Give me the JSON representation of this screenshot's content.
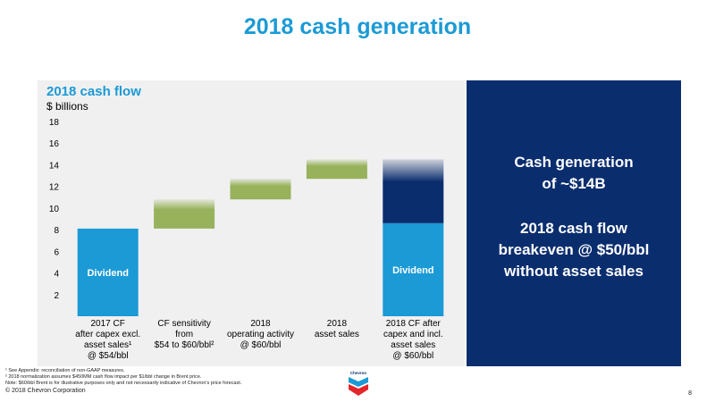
{
  "title": "2018 cash generation",
  "chart": {
    "title": "2018 cash flow",
    "unit": "$ billions"
  },
  "callouts": {
    "first": [
      "Cash generation",
      "of ~$14B"
    ],
    "second": [
      "2018 cash flow",
      "breakeven @ $50/bbl",
      "without asset sales"
    ]
  },
  "footnotes": [
    "¹ See Appendix: reconciliation of non-GAAP measures.",
    "² 2018 normalization assumes $450MM cash flow impact per $1/bbl change in Brent price.",
    "Note: $60/bbl Brent is for illustrative purposes only and not necessarily indicative of Chevron's price forecast."
  ],
  "copyright": "© 2018 Chevron Corporation",
  "page_number": "8",
  "logo_text": "Chevron",
  "chart_data": {
    "type": "bar",
    "subtype": "waterfall",
    "title": "2018 cash flow",
    "ylabel": "$ billions",
    "ylim": [
      0,
      18
    ],
    "yticks": [
      2,
      4,
      6,
      8,
      10,
      12,
      14,
      16,
      18
    ],
    "categories": [
      [
        "2017 CF",
        "after capex excl.",
        "asset sales¹",
        "@ $54/bbl"
      ],
      [
        "CF sensitivity",
        "from",
        "$54 to $60/bbl²"
      ],
      [
        "2018",
        "operating activity",
        "@ $60/bbl"
      ],
      [
        "2018",
        "asset sales"
      ],
      [
        "2018 CF after",
        "capex and incl.",
        "asset sales",
        "@ $60/bbl"
      ]
    ],
    "bars": [
      {
        "segments": [
          {
            "from": 0,
            "to": 8.1,
            "color": "#1b9ad6",
            "label": "Dividend"
          }
        ]
      },
      {
        "segments": [
          {
            "from": 8.1,
            "to": 10.8,
            "color": "#97b25b",
            "fade": true
          }
        ]
      },
      {
        "segments": [
          {
            "from": 10.8,
            "to": 12.7,
            "color": "#97b25b",
            "fade": true
          }
        ]
      },
      {
        "segments": [
          {
            "from": 12.7,
            "to": 14.5,
            "color": "#97b25b",
            "fade": true
          }
        ]
      },
      {
        "segments": [
          {
            "from": 0,
            "to": 8.6,
            "color": "#1b9ad6",
            "label": "Dividend"
          },
          {
            "from": 8.6,
            "to": 14.5,
            "color": "#0a2d6e",
            "fade": true
          }
        ]
      }
    ],
    "colors": {
      "dividend": "#1b9ad6",
      "change": "#97b25b",
      "excess": "#0a2d6e",
      "panel": "#0a2d6e",
      "accent": "#1b9ad6"
    }
  }
}
